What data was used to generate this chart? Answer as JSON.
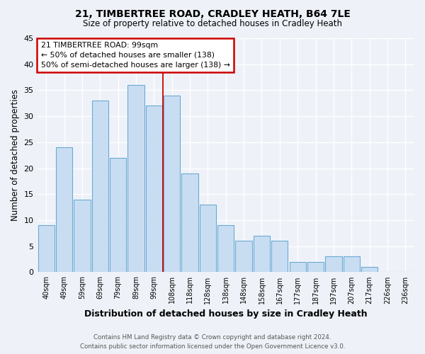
{
  "title1": "21, TIMBERTREE ROAD, CRADLEY HEATH, B64 7LE",
  "title2": "Size of property relative to detached houses in Cradley Heath",
  "xlabel": "Distribution of detached houses by size in Cradley Heath",
  "ylabel": "Number of detached properties",
  "bin_labels": [
    "40sqm",
    "49sqm",
    "59sqm",
    "69sqm",
    "79sqm",
    "89sqm",
    "99sqm",
    "108sqm",
    "118sqm",
    "128sqm",
    "138sqm",
    "148sqm",
    "158sqm",
    "167sqm",
    "177sqm",
    "187sqm",
    "197sqm",
    "207sqm",
    "217sqm",
    "226sqm",
    "236sqm"
  ],
  "bar_heights": [
    9,
    24,
    14,
    33,
    22,
    36,
    32,
    34,
    19,
    13,
    9,
    6,
    7,
    6,
    2,
    2,
    3,
    3,
    1,
    0,
    0
  ],
  "bar_color": "#c9ddf2",
  "bar_edge_color": "#6aaad4",
  "vline_index": 6,
  "vline_color": "#cc0000",
  "annotation_title": "21 TIMBERTREE ROAD: 99sqm",
  "annotation_line1": "← 50% of detached houses are smaller (138)",
  "annotation_line2": "50% of semi-detached houses are larger (138) →",
  "annotation_box_color": "#ffffff",
  "annotation_box_edge": "#cc0000",
  "ylim": [
    0,
    45
  ],
  "yticks": [
    0,
    5,
    10,
    15,
    20,
    25,
    30,
    35,
    40,
    45
  ],
  "footer1": "Contains HM Land Registry data © Crown copyright and database right 2024.",
  "footer2": "Contains public sector information licensed under the Open Government Licence v3.0.",
  "bg_color": "#eef2f8"
}
